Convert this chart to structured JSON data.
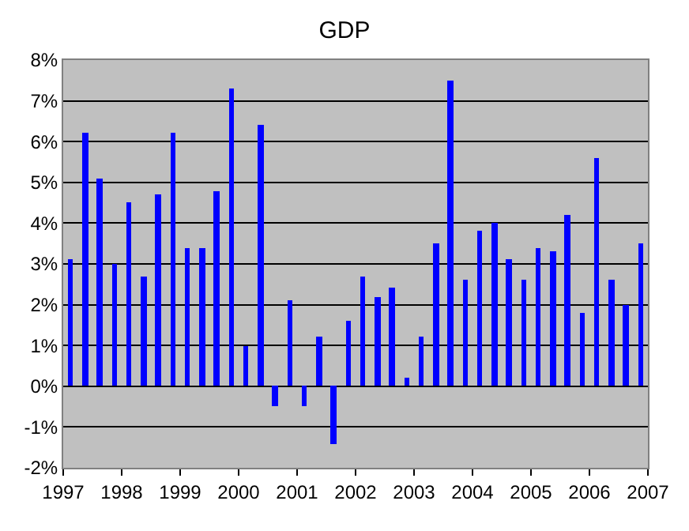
{
  "chart_data": {
    "type": "bar",
    "title": "GDP",
    "x": [
      1997.125,
      1997.375,
      1997.625,
      1997.875,
      1998.125,
      1998.375,
      1998.625,
      1998.875,
      1999.125,
      1999.375,
      1999.625,
      1999.875,
      2000.125,
      2000.375,
      2000.625,
      2000.875,
      2001.125,
      2001.375,
      2001.625,
      2001.875,
      2002.125,
      2002.375,
      2002.625,
      2002.875,
      2003.125,
      2003.375,
      2003.625,
      2003.875,
      2004.125,
      2004.375,
      2004.625,
      2004.875,
      2005.125,
      2005.375,
      2005.625,
      2005.875,
      2006.125,
      2006.375,
      2006.625,
      2006.875
    ],
    "values": [
      3.1,
      6.2,
      5.1,
      3.0,
      4.5,
      2.7,
      4.7,
      6.2,
      3.4,
      3.4,
      4.8,
      7.3,
      1.0,
      6.4,
      -0.5,
      2.1,
      -0.5,
      1.2,
      -1.4,
      1.6,
      2.7,
      2.2,
      2.4,
      0.2,
      1.2,
      3.5,
      7.5,
      2.6,
      3.8,
      4.0,
      3.1,
      2.6,
      3.4,
      3.3,
      4.2,
      1.8,
      5.6,
      2.6,
      2.0,
      3.5
    ],
    "color": "#0000ff",
    "xlim": [
      1997,
      2007
    ],
    "xticks": [
      1997,
      1998,
      1999,
      2000,
      2001,
      2002,
      2003,
      2004,
      2005,
      2006,
      2007
    ],
    "ylim": [
      -2,
      8
    ],
    "yticks": [
      {
        "value": -2,
        "label": "-2%"
      },
      {
        "value": -1,
        "label": "-1%"
      },
      {
        "value": 0,
        "label": "0%"
      },
      {
        "value": 1,
        "label": "1%"
      },
      {
        "value": 2,
        "label": "2%"
      },
      {
        "value": 3,
        "label": "3%"
      },
      {
        "value": 4,
        "label": "4%"
      },
      {
        "value": 5,
        "label": "5%"
      },
      {
        "value": 6,
        "label": "6%"
      },
      {
        "value": 7,
        "label": "7%"
      },
      {
        "value": 8,
        "label": "8%"
      }
    ],
    "grid": "y"
  }
}
